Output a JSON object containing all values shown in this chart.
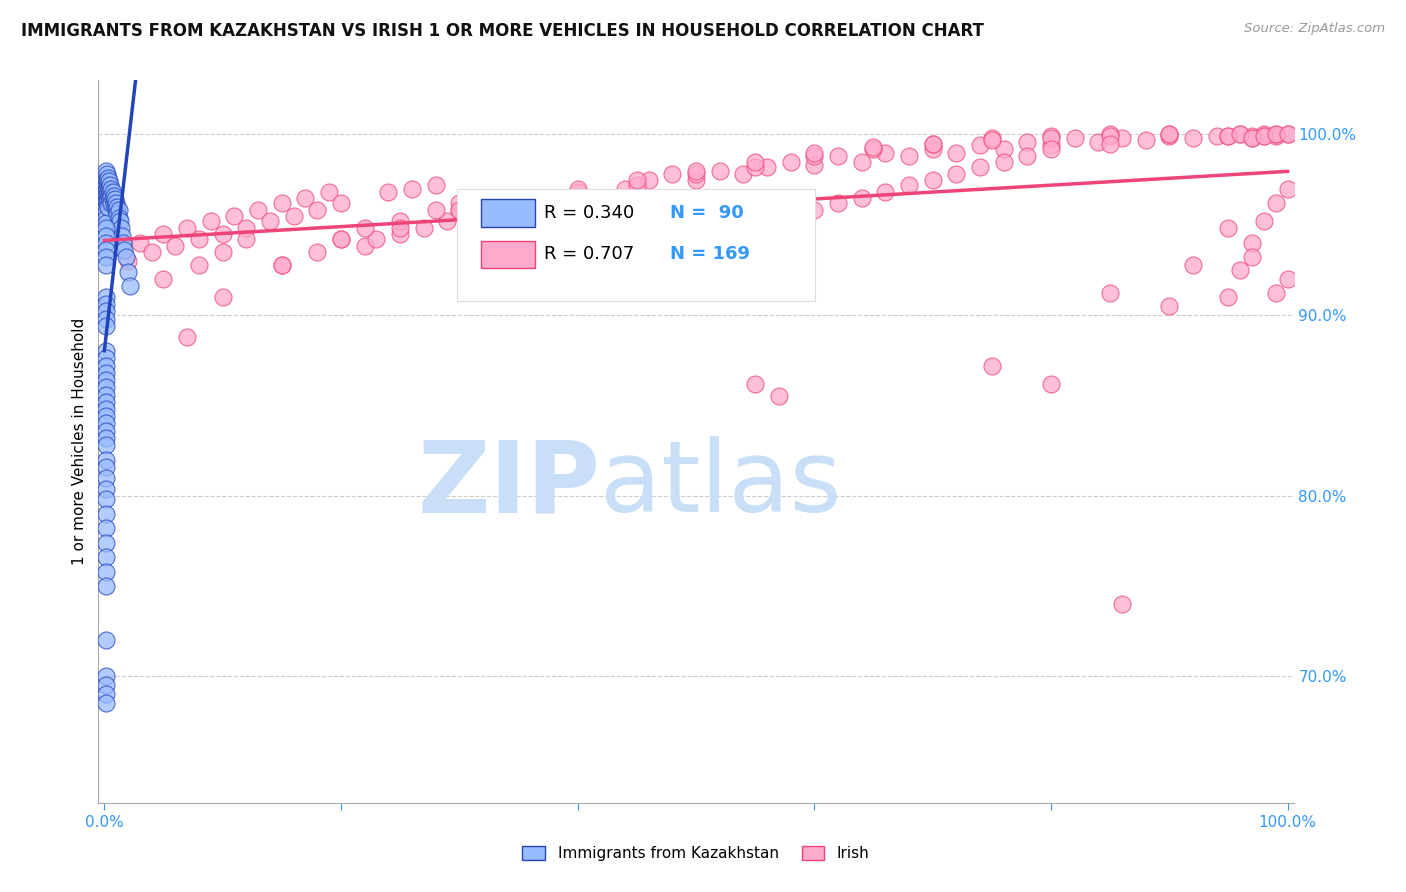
{
  "title": "IMMIGRANTS FROM KAZAKHSTAN VS IRISH 1 OR MORE VEHICLES IN HOUSEHOLD CORRELATION CHART",
  "source": "Source: ZipAtlas.com",
  "ylabel": "1 or more Vehicles in Household",
  "ylabel_ticks": [
    "70.0%",
    "80.0%",
    "90.0%",
    "100.0%"
  ],
  "ylabel_tick_vals": [
    0.7,
    0.8,
    0.9,
    1.0
  ],
  "ylim": [
    0.63,
    1.03
  ],
  "xlim": [
    -0.005,
    1.005
  ],
  "legend_r1": "R = 0.340",
  "legend_n1": "N =  90",
  "legend_r2": "R = 0.707",
  "legend_n2": "N = 169",
  "color_kaz": "#99bbff",
  "color_irish": "#ffaacc",
  "color_kaz_line": "#2244bb",
  "color_irish_line": "#ee4477",
  "color_axis_labels": "#3399ff",
  "watermark_zip": "ZIP",
  "watermark_atlas": "atlas",
  "watermark_color_zip": "#c8dff7",
  "watermark_color_atlas": "#c8dff7",
  "background_color": "#FFFFFF",
  "kaz_x": [
    0.001,
    0.001,
    0.001,
    0.001,
    0.001,
    0.001,
    0.001,
    0.001,
    0.001,
    0.001,
    0.002,
    0.002,
    0.002,
    0.002,
    0.002,
    0.003,
    0.003,
    0.003,
    0.003,
    0.003,
    0.004,
    0.004,
    0.004,
    0.005,
    0.005,
    0.005,
    0.006,
    0.006,
    0.006,
    0.007,
    0.007,
    0.008,
    0.008,
    0.009,
    0.009,
    0.01,
    0.01,
    0.011,
    0.011,
    0.012,
    0.012,
    0.013,
    0.014,
    0.015,
    0.016,
    0.017,
    0.018,
    0.02,
    0.022,
    0.001,
    0.001,
    0.001,
    0.001,
    0.001,
    0.001,
    0.001,
    0.001,
    0.001,
    0.001,
    0.001,
    0.001,
    0.001,
    0.001,
    0.001,
    0.001,
    0.001,
    0.001,
    0.001,
    0.001,
    0.001,
    0.001,
    0.001,
    0.001,
    0.001,
    0.001,
    0.001,
    0.001,
    0.001,
    0.001,
    0.001,
    0.001,
    0.001,
    0.001,
    0.001,
    0.001,
    0.001,
    0.001,
    0.001,
    0.001,
    0.001
  ],
  "kaz_y": [
    0.98,
    0.975,
    0.972,
    0.969,
    0.966,
    0.963,
    0.96,
    0.957,
    0.954,
    0.951,
    0.978,
    0.974,
    0.97,
    0.967,
    0.963,
    0.976,
    0.972,
    0.968,
    0.964,
    0.96,
    0.974,
    0.97,
    0.966,
    0.972,
    0.968,
    0.964,
    0.97,
    0.966,
    0.962,
    0.968,
    0.964,
    0.966,
    0.962,
    0.964,
    0.96,
    0.962,
    0.958,
    0.96,
    0.956,
    0.958,
    0.954,
    0.952,
    0.948,
    0.944,
    0.94,
    0.936,
    0.932,
    0.924,
    0.916,
    0.948,
    0.944,
    0.94,
    0.936,
    0.932,
    0.928,
    0.91,
    0.906,
    0.902,
    0.898,
    0.894,
    0.88,
    0.876,
    0.872,
    0.868,
    0.864,
    0.86,
    0.856,
    0.852,
    0.848,
    0.844,
    0.84,
    0.836,
    0.832,
    0.828,
    0.82,
    0.816,
    0.81,
    0.804,
    0.798,
    0.79,
    0.782,
    0.774,
    0.766,
    0.758,
    0.75,
    0.72,
    0.7,
    0.695,
    0.69,
    0.685
  ],
  "irish_x": [
    0.02,
    0.03,
    0.04,
    0.05,
    0.06,
    0.07,
    0.08,
    0.09,
    0.1,
    0.11,
    0.12,
    0.13,
    0.14,
    0.15,
    0.16,
    0.17,
    0.18,
    0.19,
    0.2,
    0.22,
    0.23,
    0.24,
    0.25,
    0.26,
    0.27,
    0.28,
    0.29,
    0.3,
    0.32,
    0.33,
    0.34,
    0.35,
    0.36,
    0.37,
    0.38,
    0.39,
    0.4,
    0.42,
    0.44,
    0.46,
    0.48,
    0.5,
    0.52,
    0.54,
    0.56,
    0.58,
    0.6,
    0.62,
    0.64,
    0.66,
    0.68,
    0.7,
    0.72,
    0.74,
    0.76,
    0.78,
    0.8,
    0.82,
    0.84,
    0.86,
    0.88,
    0.9,
    0.92,
    0.94,
    0.96,
    0.97,
    0.98,
    0.99,
    1.0,
    0.05,
    0.08,
    0.1,
    0.12,
    0.15,
    0.18,
    0.2,
    0.22,
    0.25,
    0.28,
    0.3,
    0.33,
    0.35,
    0.38,
    0.4,
    0.45,
    0.5,
    0.55,
    0.6,
    0.65,
    0.7,
    0.75,
    0.8,
    0.85,
    0.9,
    0.95,
    0.97,
    0.98,
    0.99,
    0.55,
    0.57,
    0.95,
    0.96,
    0.97,
    0.98,
    0.99,
    1.0,
    0.95,
    0.96,
    0.97,
    0.98,
    0.99,
    1.0,
    0.07,
    0.1,
    0.15,
    0.2,
    0.25,
    0.3,
    0.35,
    0.4,
    0.45,
    0.5,
    0.55,
    0.6,
    0.65,
    0.7,
    0.75,
    0.8,
    0.85,
    0.9,
    0.43,
    0.46,
    0.48,
    0.5,
    0.52,
    0.54,
    0.56,
    0.58,
    0.6,
    0.62,
    0.64,
    0.66,
    0.68,
    0.7,
    0.72,
    0.74,
    0.76,
    0.78,
    0.8,
    0.85,
    0.75,
    0.8,
    0.85,
    0.9,
    0.92,
    0.95,
    0.97,
    0.99,
    1.0,
    0.86
  ],
  "irish_y": [
    0.93,
    0.94,
    0.935,
    0.945,
    0.938,
    0.948,
    0.942,
    0.952,
    0.945,
    0.955,
    0.948,
    0.958,
    0.952,
    0.962,
    0.955,
    0.965,
    0.958,
    0.968,
    0.962,
    0.938,
    0.942,
    0.968,
    0.945,
    0.97,
    0.948,
    0.972,
    0.952,
    0.958,
    0.94,
    0.95,
    0.945,
    0.955,
    0.96,
    0.948,
    0.965,
    0.952,
    0.958,
    0.965,
    0.97,
    0.975,
    0.978,
    0.975,
    0.98,
    0.978,
    0.982,
    0.985,
    0.983,
    0.988,
    0.985,
    0.99,
    0.988,
    0.992,
    0.99,
    0.994,
    0.992,
    0.996,
    0.994,
    0.998,
    0.996,
    0.998,
    0.997,
    0.999,
    0.998,
    0.999,
    1.0,
    0.999,
    1.0,
    0.999,
    1.0,
    0.92,
    0.928,
    0.935,
    0.942,
    0.928,
    0.935,
    0.942,
    0.948,
    0.952,
    0.958,
    0.962,
    0.958,
    0.965,
    0.962,
    0.968,
    0.972,
    0.978,
    0.982,
    0.988,
    0.992,
    0.995,
    0.998,
    0.999,
    1.0,
    1.0,
    0.999,
    0.998,
    0.999,
    1.0,
    0.862,
    0.855,
    0.999,
    1.0,
    0.998,
    0.999,
    1.0,
    1.0,
    0.91,
    0.925,
    0.94,
    0.952,
    0.962,
    0.97,
    0.888,
    0.91,
    0.928,
    0.942,
    0.948,
    0.958,
    0.962,
    0.97,
    0.975,
    0.98,
    0.985,
    0.99,
    0.993,
    0.995,
    0.997,
    0.998,
    0.999,
    1.0,
    0.932,
    0.935,
    0.938,
    0.942,
    0.945,
    0.948,
    0.952,
    0.955,
    0.958,
    0.962,
    0.965,
    0.968,
    0.972,
    0.975,
    0.978,
    0.982,
    0.985,
    0.988,
    0.992,
    0.995,
    0.872,
    0.862,
    0.912,
    0.905,
    0.928,
    0.948,
    0.932,
    0.912,
    0.92,
    0.74
  ]
}
